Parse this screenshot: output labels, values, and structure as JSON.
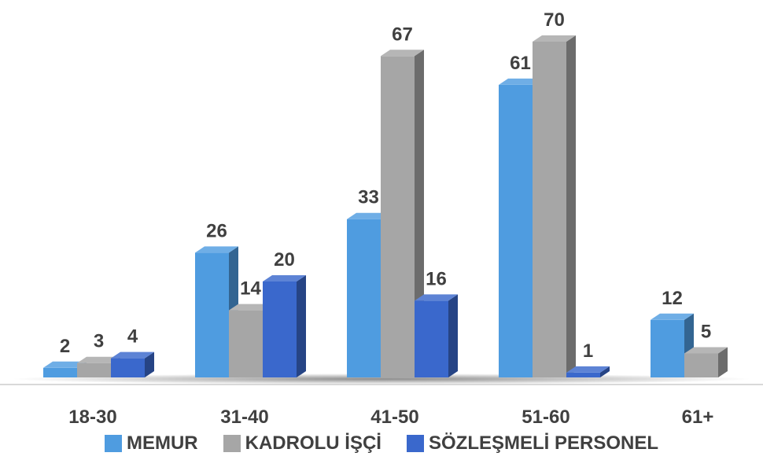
{
  "chart_data": {
    "type": "bar",
    "categories": [
      "18-30",
      "31-40",
      "41-50",
      "51-60",
      "61+"
    ],
    "series": [
      {
        "name": "MEMUR",
        "values": [
          2,
          26,
          33,
          61,
          12
        ],
        "color": "#4f9ce0"
      },
      {
        "name": "KADROLU İŞÇİ",
        "values": [
          3,
          14,
          67,
          70,
          5
        ],
        "color": "#a6a6a6"
      },
      {
        "name": "SÖZLEŞMELİ PERSONEL",
        "values": [
          4,
          20,
          16,
          1,
          null
        ],
        "color": "#3a68cc"
      }
    ],
    "title": "",
    "xlabel": "",
    "ylabel": "",
    "ylim": [
      0,
      70
    ],
    "grid": false,
    "legend_position": "bottom",
    "data_labels": true
  }
}
